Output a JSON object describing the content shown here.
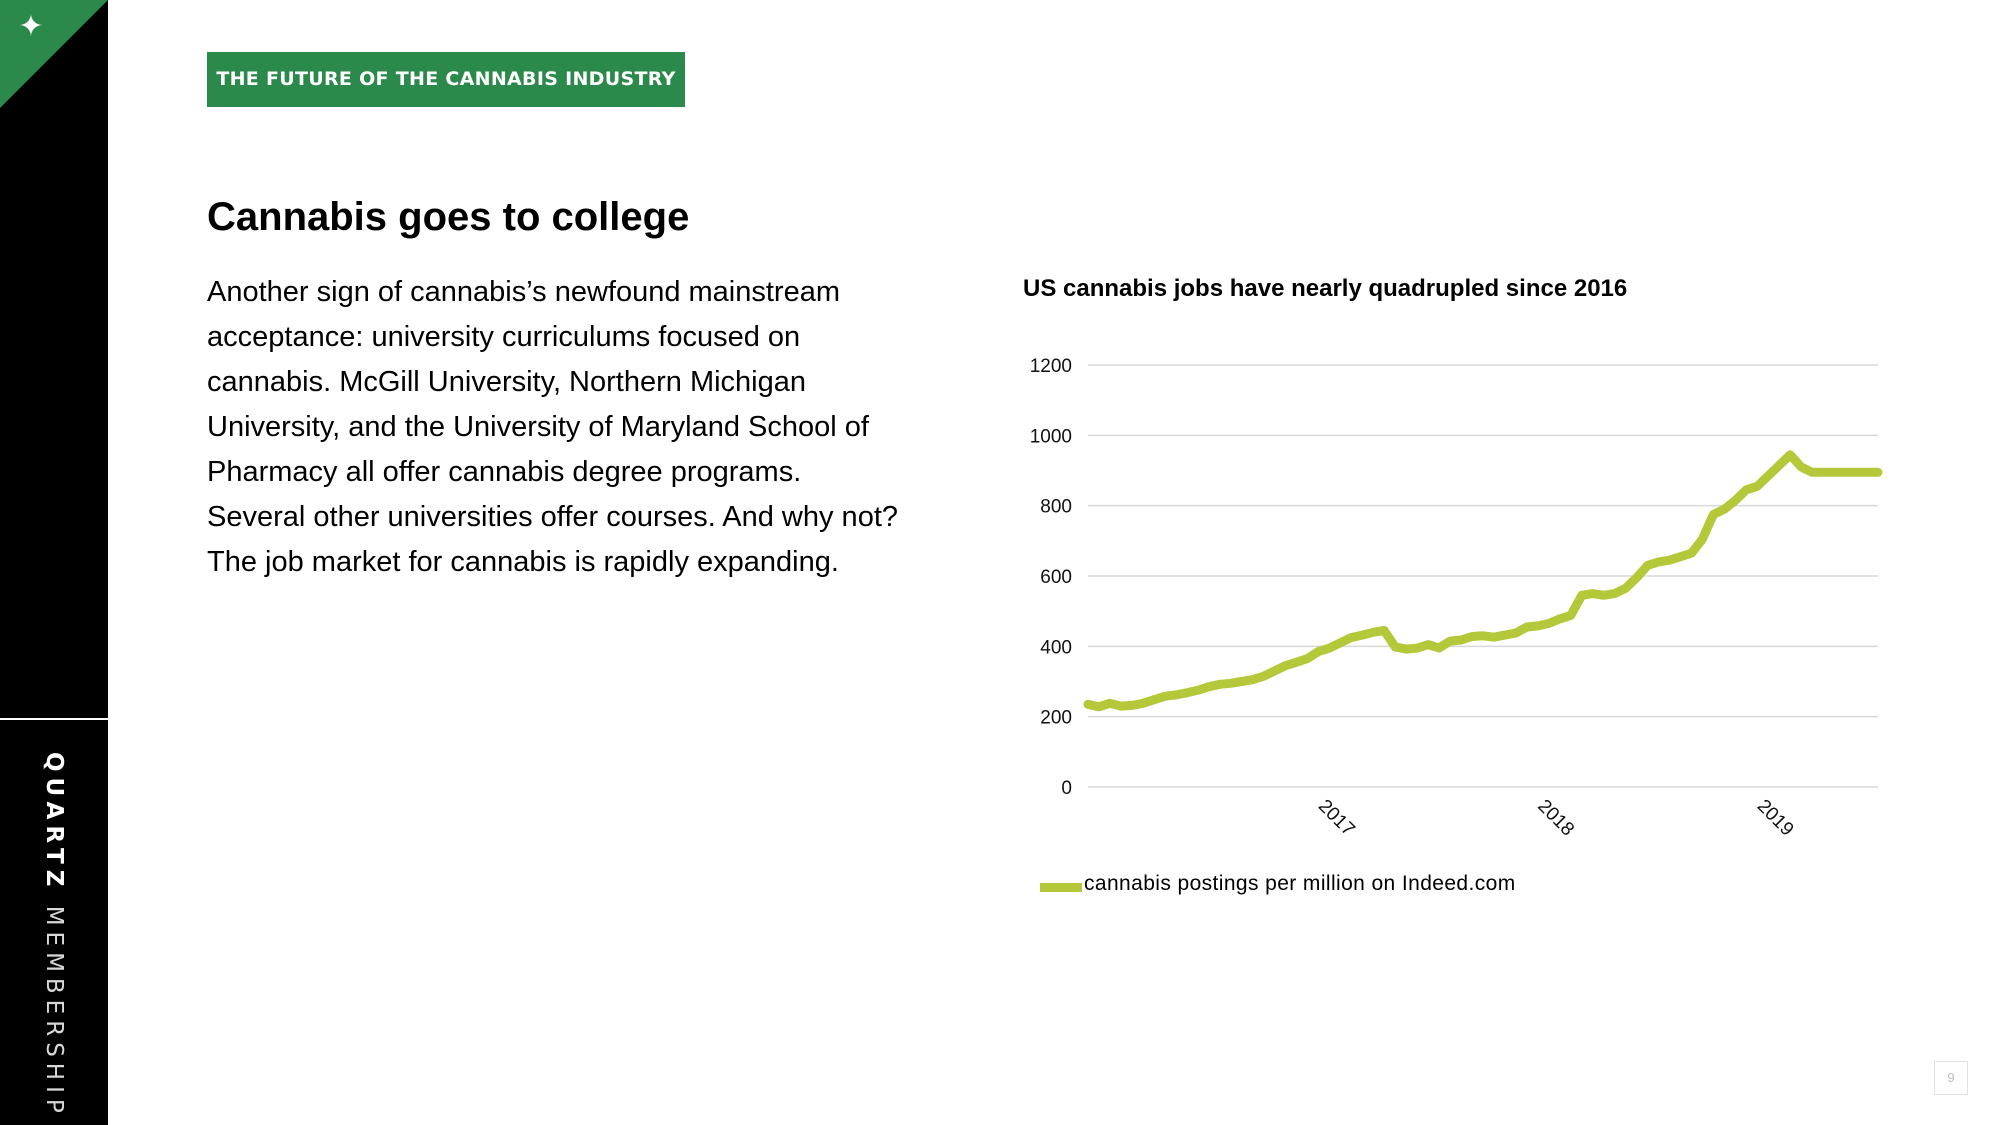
{
  "sidebar": {
    "brand_bold": "QUARTZ",
    "brand_light": "MEMBERSHIP",
    "logo_icon": "sparkle-icon"
  },
  "header": {
    "banner": "THE FUTURE OF THE CANNABIS INDUSTRY"
  },
  "content": {
    "headline": "Cannabis goes to college",
    "body": "Another sign of cannabis’s newfound mainstream acceptance: university curriculums focused on cannabis. McGill University, Northern Michigan University, and the University of Maryland School of Pharmacy all offer cannabis degree programs. Several other universities offer courses. And why not? The job market for cannabis is rapidly expanding."
  },
  "page_number": "9",
  "chart_data": {
    "type": "line",
    "title": "US cannabis jobs have nearly quadrupled since 2016",
    "xlabel": "",
    "ylabel": "",
    "ylim": [
      0,
      1200
    ],
    "yticks": [
      "0",
      "200",
      "400",
      "600",
      "800",
      "1000",
      "1200"
    ],
    "x_tick_labels": [
      "2017",
      "2018",
      "2019"
    ],
    "x_tick_positions": [
      2017.0,
      2018.0,
      2019.0
    ],
    "xlim": [
      2016.0,
      2019.6
    ],
    "grid": true,
    "legend_position": "bottom",
    "color": "#b5c83a",
    "series": [
      {
        "name": "cannabis postings per million on Indeed.com",
        "x": [
          2016.0,
          2016.05,
          2016.1,
          2016.15,
          2016.2,
          2016.25,
          2016.3,
          2016.35,
          2016.4,
          2016.45,
          2016.5,
          2016.55,
          2016.6,
          2016.65,
          2016.7,
          2016.75,
          2016.8,
          2016.85,
          2016.9,
          2016.95,
          2017.0,
          2017.05,
          2017.1,
          2017.15,
          2017.2,
          2017.25,
          2017.3,
          2017.35,
          2017.4,
          2017.45,
          2017.5,
          2017.55,
          2017.6,
          2017.65,
          2017.7,
          2017.75,
          2017.8,
          2017.85,
          2017.9,
          2017.95,
          2018.0,
          2018.05,
          2018.1,
          2018.15,
          2018.2,
          2018.25,
          2018.3,
          2018.35,
          2018.4,
          2018.45,
          2018.5,
          2018.55,
          2018.6,
          2018.65,
          2018.7,
          2018.75,
          2018.8,
          2018.85,
          2018.9,
          2018.95,
          2019.0,
          2019.05,
          2019.1,
          2019.15,
          2019.2,
          2019.25,
          2019.3,
          2019.35,
          2019.4,
          2019.45,
          2019.5,
          2019.55,
          2019.6
        ],
        "values": [
          235,
          228,
          238,
          230,
          232,
          238,
          248,
          258,
          262,
          268,
          275,
          285,
          292,
          295,
          300,
          305,
          315,
          330,
          345,
          355,
          365,
          385,
          395,
          410,
          425,
          432,
          440,
          445,
          398,
          392,
          395,
          405,
          395,
          415,
          418,
          428,
          430,
          426,
          432,
          438,
          455,
          458,
          465,
          478,
          488,
          545,
          550,
          545,
          550,
          565,
          595,
          630,
          640,
          645,
          655,
          665,
          705,
          775,
          790,
          815,
          845,
          855,
          885,
          915,
          945,
          910,
          895,
          895,
          895,
          895,
          895,
          895,
          895
        ]
      }
    ]
  }
}
